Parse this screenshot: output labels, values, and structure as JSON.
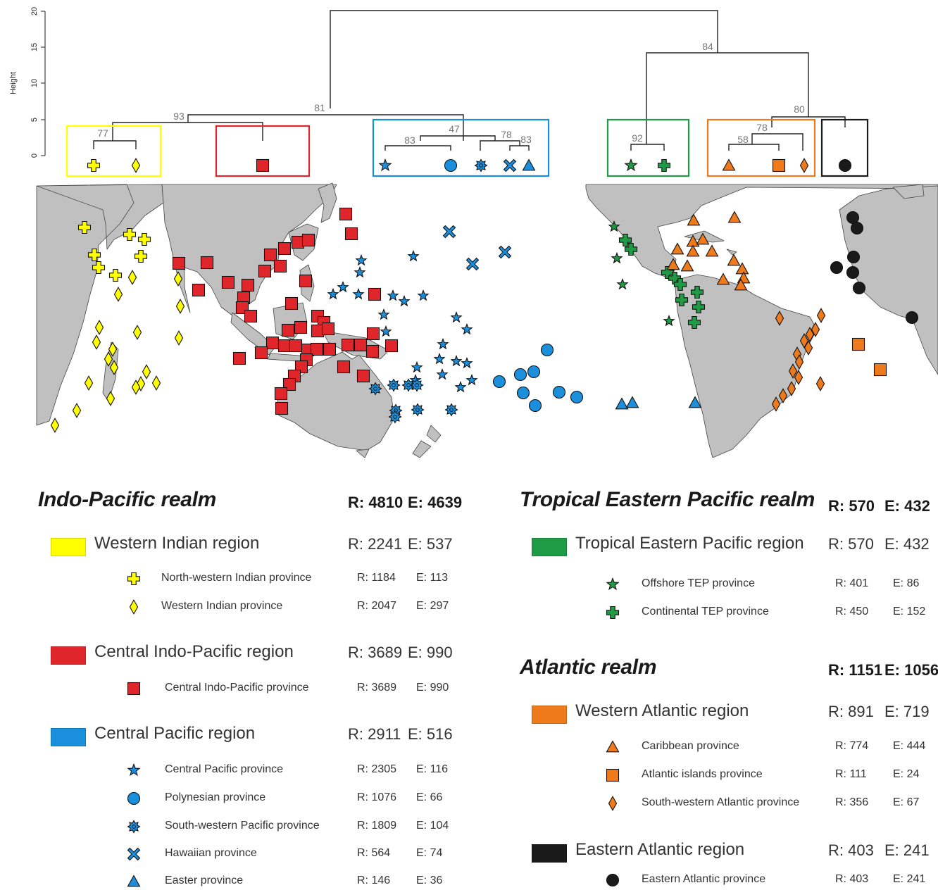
{
  "colors": {
    "yellow": "#ffff00",
    "red": "#e0262a",
    "blue": "#1a8fdc",
    "green": "#1f9a45",
    "orange": "#ee7a1c",
    "black": "#1a1a1a",
    "land": "#c0c0c0",
    "dendro_line": "#222222",
    "node_label": "#777777"
  },
  "dendrogram": {
    "ylabel": "Height",
    "yticks": [
      "0",
      "5",
      "10",
      "15",
      "20"
    ],
    "node_labels": [
      "77",
      "93",
      "81",
      "83",
      "47",
      "78",
      "83",
      "84",
      "92",
      "80",
      "78",
      "58"
    ]
  },
  "legend": {
    "left": {
      "realm": {
        "name": "Indo-Pacific realm",
        "r": "R: 4810",
        "e": "E: 4639"
      },
      "regions": [
        {
          "name": "Western Indian region",
          "r": "R: 2241",
          "e": "E: 537",
          "color": "#ffff00",
          "provinces": [
            {
              "name": "North-western Indian province",
              "r": "R: 1184",
              "e": "E: 113",
              "symbol": "cross"
            },
            {
              "name": "Western Indian province",
              "r": "R: 2047",
              "e": "E: 297",
              "symbol": "diamond"
            }
          ]
        },
        {
          "name": "Central Indo-Pacific region",
          "r": "R: 3689",
          "e": "E: 990",
          "color": "#e0262a",
          "provinces": [
            {
              "name": "Central Indo-Pacific province",
              "r": "R: 3689",
              "e": "E: 990",
              "symbol": "square"
            }
          ]
        },
        {
          "name": "Central Pacific region",
          "r": "R: 2911",
          "e": "E: 516",
          "color": "#1a8fdc",
          "provinces": [
            {
              "name": "Central Pacific province",
              "r": "R: 2305",
              "e": "E: 116",
              "symbol": "star"
            },
            {
              "name": "Polynesian province",
              "r": "R: 1076",
              "e": "E:   66",
              "symbol": "circle"
            },
            {
              "name": "South-western Pacific province",
              "r": "R: 1809",
              "e": "E: 104",
              "symbol": "asterisk"
            },
            {
              "name": "Hawaiian province",
              "r": "R:   564",
              "e": "E:   74",
              "symbol": "x"
            },
            {
              "name": "Easter province",
              "r": "R:   146",
              "e": "E:   36",
              "symbol": "triangle"
            }
          ]
        }
      ]
    },
    "right": {
      "realms": [
        {
          "name": "Tropical Eastern Pacific realm",
          "r": "R: 570",
          "e": "E: 432",
          "regions": [
            {
              "name": "Tropical Eastern Pacific region",
              "r": "R: 570",
              "e": "E: 432",
              "color": "#1f9a45",
              "provinces": [
                {
                  "name": "Offshore TEP province",
                  "r": "R: 401",
                  "e": "E:   86",
                  "symbol": "star"
                },
                {
                  "name": "Continental TEP province",
                  "r": "R: 450",
                  "e": "E: 152",
                  "symbol": "cross"
                }
              ]
            }
          ]
        },
        {
          "name": "Atlantic realm",
          "r": "R: 1151",
          "e": "E: 1056",
          "regions": [
            {
              "name": "Western Atlantic region",
              "r": "R: 891",
              "e": "E: 719",
              "color": "#ee7a1c",
              "provinces": [
                {
                  "name": "Caribbean province",
                  "r": "R: 774",
                  "e": "E: 444",
                  "symbol": "triangle"
                },
                {
                  "name": "Atlantic islands province",
                  "r": "R: 111",
                  "e": "E:   24",
                  "symbol": "square"
                },
                {
                  "name": "South-western Atlantic province",
                  "r": "R: 356",
                  "e": "E:   67",
                  "symbol": "diamond"
                }
              ]
            },
            {
              "name": "Eastern Atlantic region",
              "r": "R: 403",
              "e": "E: 241",
              "color": "#1a1a1a",
              "provinces": [
                {
                  "name": "Eastern Atlantic province",
                  "r": "R: 403",
                  "e": "E: 241",
                  "symbol": "circle"
                }
              ]
            }
          ]
        }
      ]
    }
  },
  "chart_data": {
    "type": "dendrogram",
    "ylabel": "Height",
    "ylim": [
      0,
      20
    ],
    "heights": {
      "root": 19.7,
      "tep_atlantic": 14.1,
      "western_atlantic_group": 5.0,
      "western_atlantic": 2.7,
      "caribbean_atlantic_islands": 1.5,
      "tep": 4.0,
      "indo_pacific": 5.6,
      "western_indian_cip": 4.5,
      "western_indian": 4.3,
      "central_pacific": 4.0,
      "cp_star_polynesian": 2.1,
      "cp_asterisk_hawaii_easter": 2.0,
      "hawaii_easter": 1.2
    },
    "leaves": [
      "North-western Indian province",
      "Western Indian province",
      "Central Indo-Pacific province",
      "Central Pacific province",
      "Polynesian province",
      "South-western Pacific province",
      "Hawaiian province",
      "Easter province",
      "Offshore TEP province",
      "Continental TEP province",
      "Caribbean province",
      "Atlantic islands province",
      "South-western Atlantic province",
      "Eastern Atlantic province"
    ],
    "node_support": {
      "western_indian": 77,
      "western_indian_cip": 93,
      "indo_pacific": 81,
      "cp_star_polynesian": 83,
      "central_pacific": 47,
      "cp_asterisk_hawaii_easter": 78,
      "hawaii_easter": 83,
      "tep_atlantic": 84,
      "tep": 92,
      "western_atlantic_group": 80,
      "western_atlantic": 78,
      "caribbean_atlantic_islands": 58
    }
  }
}
